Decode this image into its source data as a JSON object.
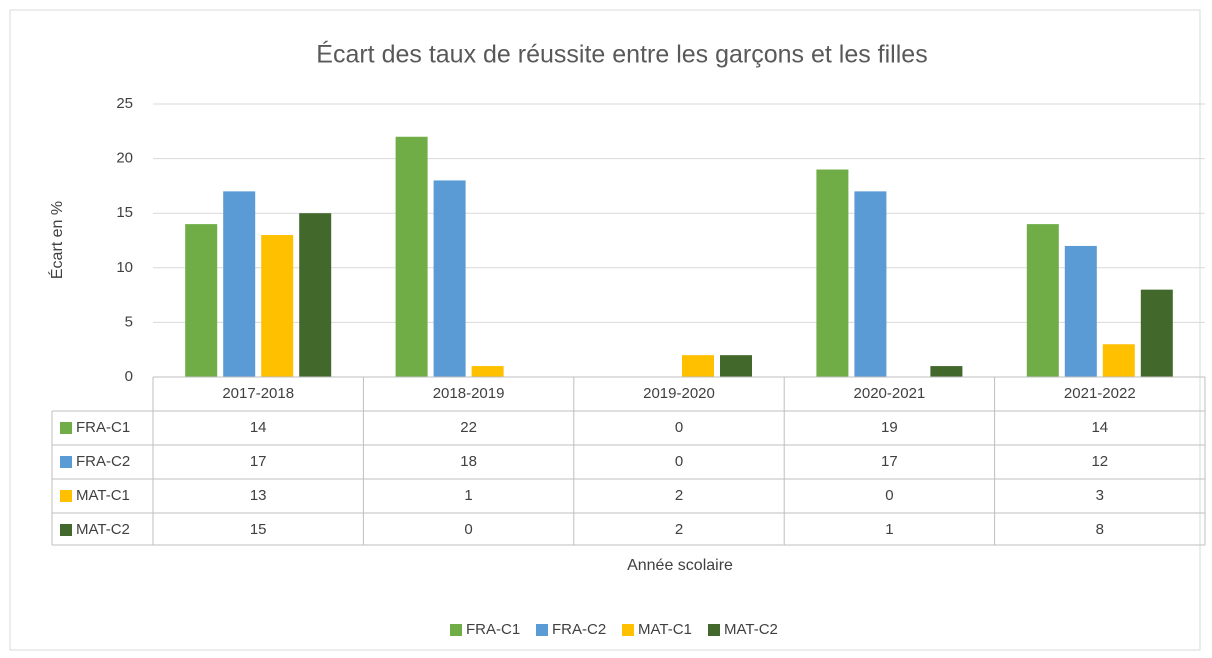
{
  "chart_data": {
    "type": "bar",
    "title": "Écart des taux de réussite entre les garçons et les filles",
    "y_label": "Écart en %",
    "x_label": "Année scolaire",
    "categories": [
      "2017-2018",
      "2018-2019",
      "2019-2020",
      "2020-2021",
      "2021-2022"
    ],
    "series": [
      {
        "name": "FRA-C1",
        "color": "#70ad47",
        "values": [
          14,
          22,
          0,
          19,
          14
        ]
      },
      {
        "name": "FRA-C2",
        "color": "#5b9bd5",
        "values": [
          17,
          18,
          0,
          17,
          12
        ]
      },
      {
        "name": "MAT-C1",
        "color": "#ffc000",
        "values": [
          13,
          1,
          2,
          0,
          3
        ]
      },
      {
        "name": "MAT-C2",
        "color": "#43682b",
        "values": [
          15,
          0,
          2,
          1,
          8
        ]
      }
    ],
    "ylim": [
      0,
      25
    ],
    "yticks": [
      0,
      5,
      10,
      15,
      20,
      25
    ],
    "grid": true,
    "legend": "bottom",
    "data_table": true
  }
}
